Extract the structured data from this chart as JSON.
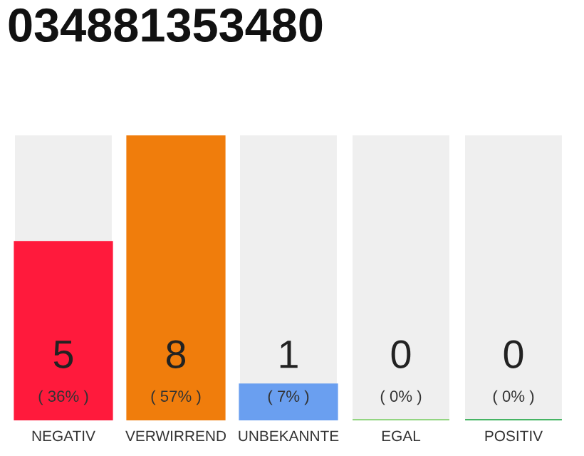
{
  "chart_data": {
    "type": "bar",
    "title": "034881353480",
    "categories": [
      "NEGATIV",
      "VERWIRREND",
      "UNBEKANNTE",
      "EGAL",
      "POSITIV"
    ],
    "values": [
      5,
      8,
      1,
      0,
      0
    ],
    "colors": [
      "#ff1a3c",
      "#f07d0c",
      "#6a9ff0",
      "#7fcf6a",
      "#22a845"
    ],
    "data_labels": true,
    "annotations": [
      "( 36% )",
      "( 57% )",
      "( 7% )",
      "( 0% )",
      "( 0% )"
    ],
    "grid": false,
    "legend": false
  }
}
